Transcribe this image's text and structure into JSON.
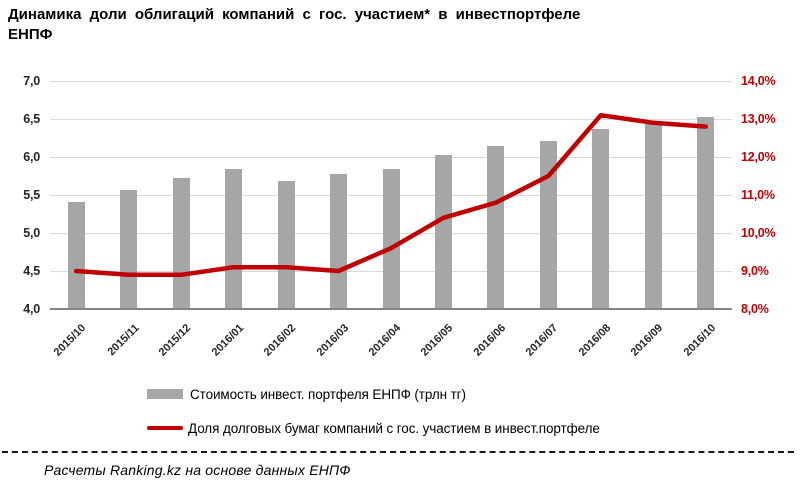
{
  "title": {
    "line1": "Динамика доли облигаций компаний с гос. участием* в инвестпортфеле",
    "line2": "ЕНПФ"
  },
  "legend": {
    "items": [
      {
        "label": "Стоимость инвест. портфеля ЕНПФ (трлн тг)",
        "marker": "bar-swatch",
        "color": "#a6a6a6"
      },
      {
        "label": "Доля долговых бумаг компаний с гос. участием в инвест.портфеле",
        "marker": "line-swatch",
        "color": "#c00000"
      }
    ]
  },
  "footer": {
    "source": "Расчеты Ranking.kz на основе данных ЕНПФ"
  },
  "chart_data": {
    "type": "combo",
    "title": "Динамика доли облигаций компаний с гос. участием* в инвестпортфеле ЕНПФ",
    "categories": [
      "2015/10",
      "2015/11",
      "2015/12",
      "2016/01",
      "2016/02",
      "2016/03",
      "2016/04",
      "2016/05",
      "2016/06",
      "2016/07",
      "2016/08",
      "2016/09",
      "2016/10"
    ],
    "series": [
      {
        "name": "Стоимость инвест. портфеля ЕНПФ (трлн тг)",
        "type": "bar",
        "axis": "left",
        "color": "#a6a6a6",
        "values": [
          5.41,
          5.57,
          5.73,
          5.84,
          5.69,
          5.77,
          5.84,
          6.02,
          6.15,
          6.21,
          6.37,
          6.45,
          6.53
        ]
      },
      {
        "name": "Доля долговых бумаг компаний с гос. участием в инвест.портфеле",
        "type": "line",
        "axis": "right",
        "color": "#c00000",
        "values": [
          9.0,
          8.9,
          8.9,
          9.1,
          9.1,
          9.0,
          9.6,
          10.4,
          10.8,
          11.5,
          13.1,
          12.9,
          12.8
        ]
      }
    ],
    "left_axis": {
      "min": 4.0,
      "max": 7.0,
      "step": 0.5,
      "labels": [
        "7,0",
        "6,5",
        "6,0",
        "5,5",
        "5,0",
        "4,5",
        "4,0"
      ],
      "color": "#262626"
    },
    "right_axis": {
      "min": 8.0,
      "max": 14.0,
      "step": 1.0,
      "labels": [
        "14,0%",
        "13,0%",
        "12,0%",
        "11,0%",
        "10,0%",
        "9,0%",
        "8,0%"
      ],
      "color": "#c00000"
    },
    "grid": true,
    "gridline_color": "#d9d9d9",
    "legend_position": "bottom"
  }
}
